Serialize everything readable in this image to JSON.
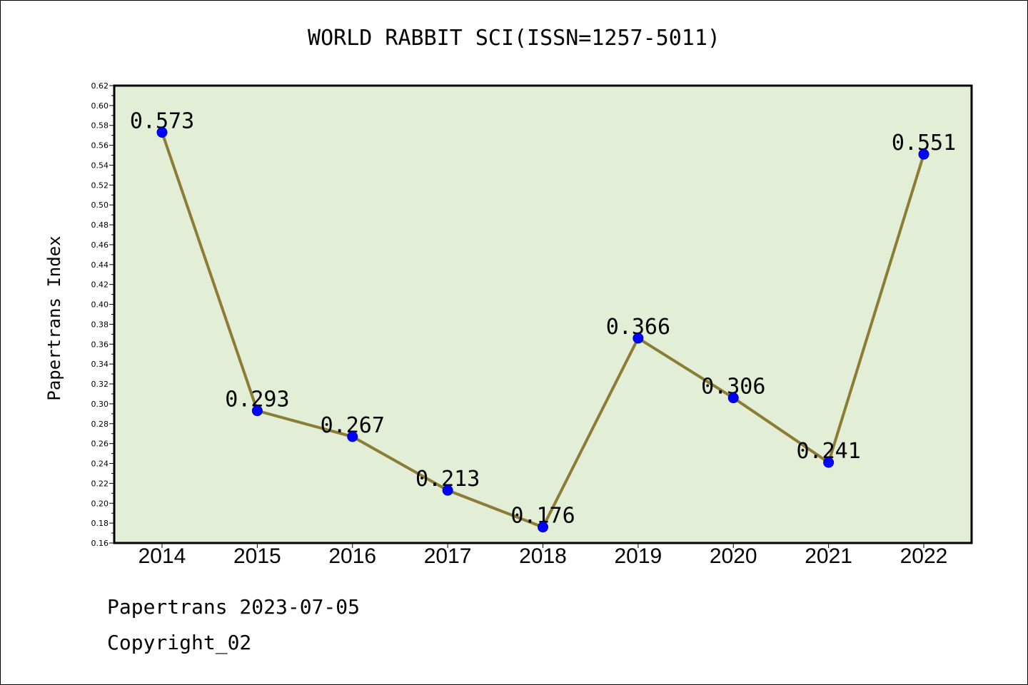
{
  "colors": {
    "plot_background": "#e2efd6",
    "line": "#8b7d35",
    "marker_fill": "#0000ff",
    "marker_edge": "#0000aa"
  },
  "chart_data": {
    "type": "line",
    "title": "WORLD RABBIT SCI(ISSN=1257-5011)",
    "xlabel": "",
    "ylabel": "Papertrans Index",
    "categories": [
      "2014",
      "2015",
      "2016",
      "2017",
      "2018",
      "2019",
      "2020",
      "2021",
      "2022"
    ],
    "series": [
      {
        "values": [
          0.573,
          0.293,
          0.267,
          0.213,
          0.176,
          0.366,
          0.306,
          0.241,
          0.551
        ],
        "labels": [
          "0.573",
          "0.293",
          "0.267",
          "0.213",
          "0.176",
          "0.366",
          "0.306",
          "0.241",
          "0.551"
        ]
      }
    ],
    "ylim": [
      0.16,
      0.62
    ],
    "yticks": [
      "0.16",
      "0.18",
      "0.20",
      "0.22",
      "0.24",
      "0.26",
      "0.28",
      "0.30",
      "0.32",
      "0.34",
      "0.36",
      "0.38",
      "0.40",
      "0.42",
      "0.44",
      "0.46",
      "0.48",
      "0.50",
      "0.52",
      "0.54",
      "0.56",
      "0.58",
      "0.60",
      "0.62"
    ],
    "grid": false,
    "legend": "none"
  },
  "footer": {
    "line1": "Papertrans 2023-07-05",
    "line2": "Copyright_02"
  }
}
